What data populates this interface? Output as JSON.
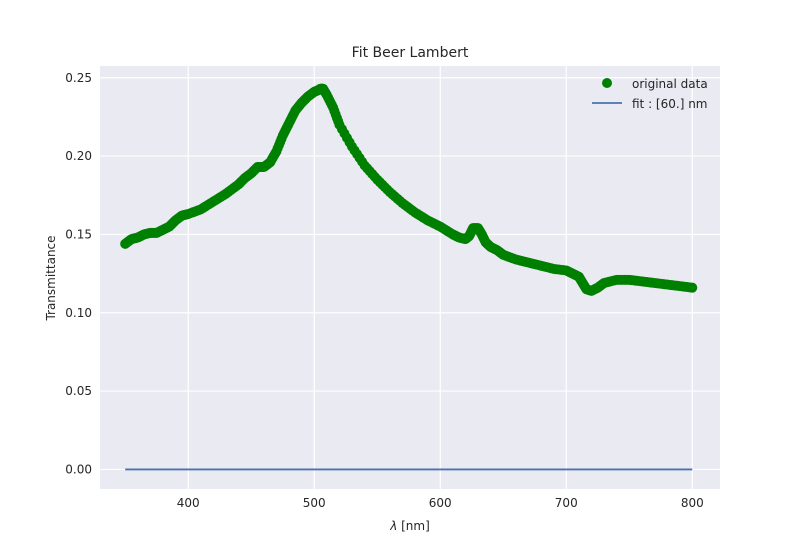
{
  "chart_data": {
    "type": "scatter",
    "title": "Fit Beer Lambert",
    "xlabel_symbol": "λ",
    "xlabel_unit": " [nm]",
    "ylabel": "Transmittance",
    "xlim": [
      330,
      822
    ],
    "ylim": [
      -0.0125,
      0.2575
    ],
    "xticks": [
      400,
      500,
      600,
      700,
      800
    ],
    "yticks": [
      0.0,
      0.05,
      0.1,
      0.15,
      0.2,
      0.25
    ],
    "ytick_labels": [
      "0.00",
      "0.05",
      "0.10",
      "0.15",
      "0.20",
      "0.25"
    ],
    "grid": true,
    "legend_position": "top-right",
    "series": [
      {
        "name": "original data",
        "kind": "scatter",
        "color": "#008000",
        "x": [
          350,
          355,
          360,
          365,
          370,
          375,
          380,
          385,
          390,
          395,
          400,
          410,
          420,
          430,
          440,
          445,
          450,
          455,
          460,
          465,
          470,
          475,
          480,
          485,
          490,
          495,
          500,
          503,
          505,
          507,
          510,
          515,
          520,
          530,
          540,
          550,
          560,
          570,
          580,
          590,
          600,
          610,
          615,
          620,
          623,
          626,
          630,
          633,
          636,
          640,
          645,
          650,
          660,
          670,
          680,
          690,
          700,
          705,
          710,
          713,
          716,
          720,
          725,
          730,
          740,
          750,
          760,
          770,
          780,
          790,
          800
        ],
        "y": [
          0.144,
          0.147,
          0.148,
          0.15,
          0.151,
          0.151,
          0.153,
          0.155,
          0.159,
          0.162,
          0.163,
          0.166,
          0.171,
          0.176,
          0.182,
          0.186,
          0.189,
          0.193,
          0.193,
          0.196,
          0.203,
          0.213,
          0.221,
          0.229,
          0.234,
          0.238,
          0.241,
          0.242,
          0.243,
          0.243,
          0.239,
          0.231,
          0.22,
          0.206,
          0.194,
          0.185,
          0.177,
          0.17,
          0.164,
          0.159,
          0.155,
          0.15,
          0.148,
          0.147,
          0.149,
          0.154,
          0.154,
          0.15,
          0.145,
          0.142,
          0.14,
          0.137,
          0.134,
          0.132,
          0.13,
          0.128,
          0.127,
          0.125,
          0.123,
          0.119,
          0.115,
          0.114,
          0.116,
          0.119,
          0.121,
          0.121,
          0.12,
          0.119,
          0.118,
          0.117,
          0.116
        ]
      },
      {
        "name": "fit : [60.] nm",
        "kind": "line",
        "color": "#4c72b0",
        "x": [
          350,
          800
        ],
        "y": [
          0.0,
          0.0
        ]
      }
    ]
  },
  "colors": {
    "plot_background": "#eaeaf2",
    "grid": "#ffffff"
  }
}
